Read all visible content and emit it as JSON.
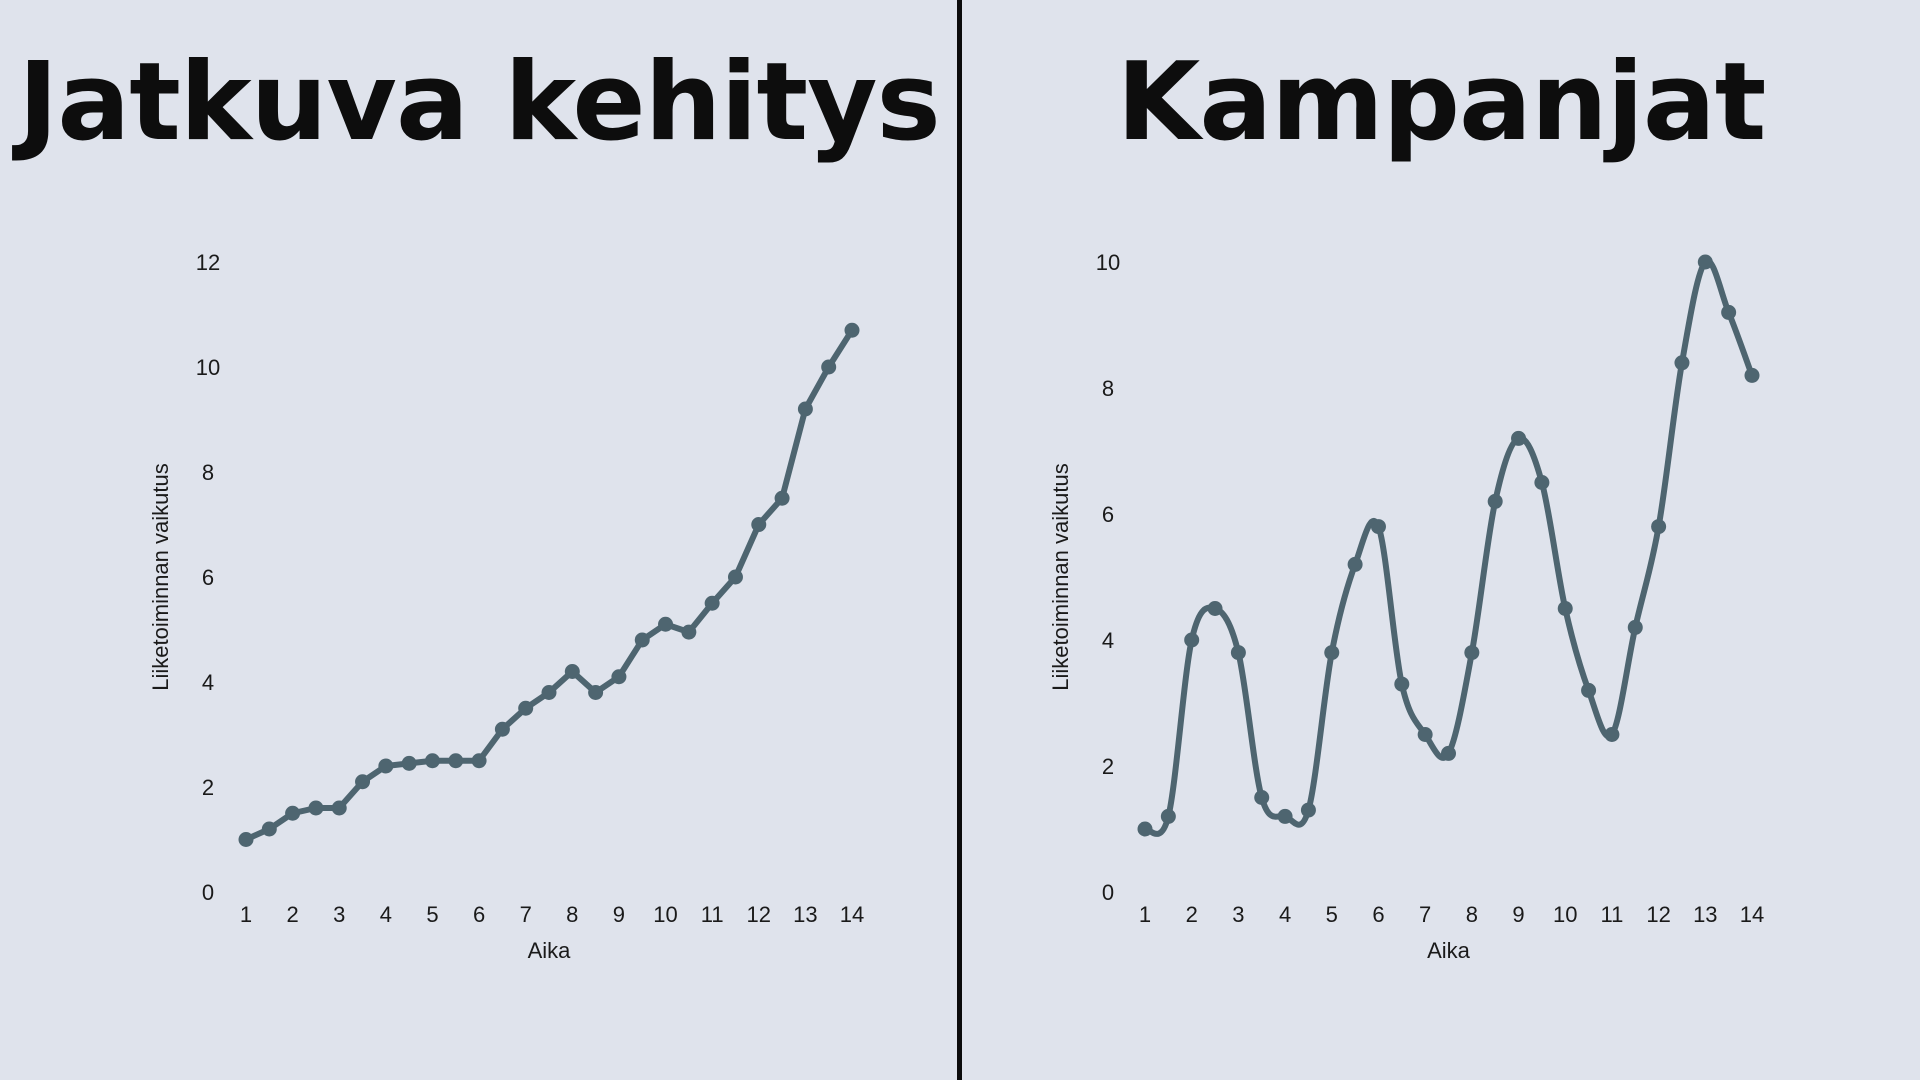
{
  "colors": {
    "background": "#dfe3ec",
    "line": "#4e6570",
    "divider": "#0c0c0c",
    "text": "#0d0d0d"
  },
  "chart_data": [
    {
      "type": "line",
      "title": "Jatkuva kehitys",
      "xlabel": "Aika",
      "ylabel": "Liiketoiminnan vaikutus",
      "xlim": [
        1,
        14
      ],
      "ylim": [
        0,
        12
      ],
      "x_ticks": [
        1,
        2,
        3,
        4,
        5,
        6,
        7,
        8,
        9,
        10,
        11,
        12,
        13,
        14
      ],
      "y_ticks": [
        0,
        2,
        4,
        6,
        8,
        10,
        12
      ],
      "smooth": false,
      "grid": false,
      "series": [
        {
          "x": [
            1,
            1.5,
            2,
            2.5,
            3,
            3.5,
            4,
            4.5,
            5,
            5.5,
            6,
            6.5,
            7,
            7.5,
            8,
            8.5,
            9,
            9.5,
            10,
            10.5,
            11,
            11.5,
            12,
            12.5,
            13,
            13.5,
            14
          ],
          "y": [
            1.0,
            1.2,
            1.5,
            1.6,
            1.6,
            2.1,
            2.4,
            2.45,
            2.5,
            2.5,
            2.5,
            3.1,
            3.5,
            3.8,
            4.2,
            3.8,
            4.1,
            4.8,
            5.1,
            4.95,
            5.5,
            6.0,
            7.0,
            7.5,
            9.2,
            10.0,
            10.7
          ]
        }
      ]
    },
    {
      "type": "line",
      "title": "Kampanjat",
      "xlabel": "Aika",
      "ylabel": "Liiketoiminnan vaikutus",
      "xlim": [
        1,
        14
      ],
      "ylim": [
        0,
        10
      ],
      "x_ticks": [
        1,
        2,
        3,
        4,
        5,
        6,
        7,
        8,
        9,
        10,
        11,
        12,
        13,
        14
      ],
      "y_ticks": [
        0,
        2,
        4,
        6,
        8,
        10
      ],
      "smooth": true,
      "grid": false,
      "series": [
        {
          "x": [
            1,
            1.5,
            2,
            2.5,
            3,
            3.5,
            4,
            4.5,
            5,
            5.5,
            6,
            6.5,
            7,
            7.5,
            8,
            8.5,
            9,
            9.5,
            10,
            10.5,
            11,
            11.5,
            12,
            12.5,
            13,
            13.5,
            14
          ],
          "y": [
            1.0,
            1.2,
            4.0,
            4.5,
            3.8,
            1.5,
            1.2,
            1.3,
            3.8,
            5.2,
            5.8,
            3.3,
            2.5,
            2.2,
            3.8,
            6.2,
            7.2,
            6.5,
            4.5,
            3.2,
            2.5,
            4.2,
            5.8,
            8.4,
            10.0,
            9.2,
            8.2
          ]
        }
      ]
    }
  ]
}
